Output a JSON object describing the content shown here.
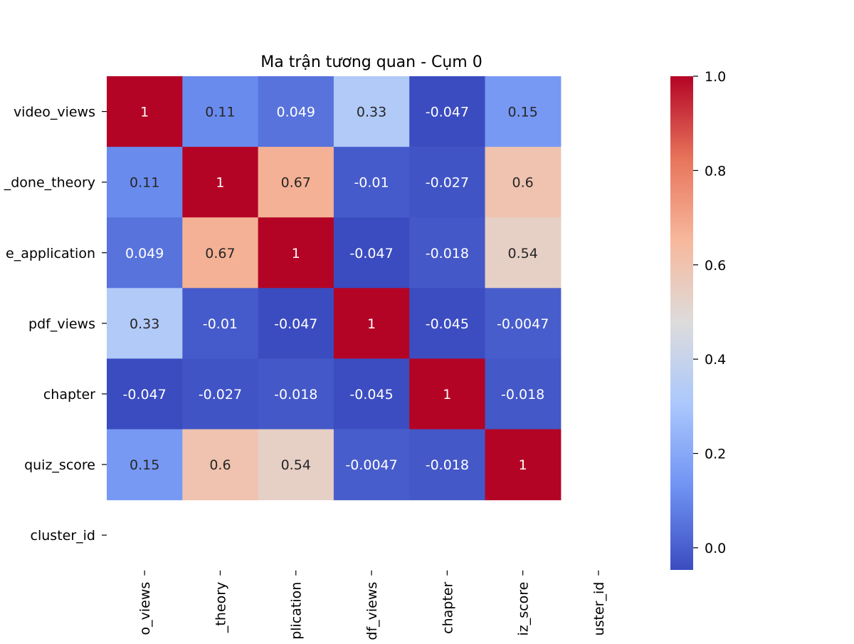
{
  "chart_data": {
    "type": "heatmap",
    "title": "Ma trận tương quan - Cụm 0",
    "row_labels": [
      "video_views",
      "_done_theory",
      "e_application",
      "pdf_views",
      "chapter",
      "quiz_score",
      "cluster_id"
    ],
    "col_labels": [
      "o_views",
      "_theory",
      "plication",
      "df_views",
      "chapter",
      "iz_score",
      "uster_id"
    ],
    "values": [
      [
        1,
        0.11,
        0.049,
        0.33,
        -0.047,
        0.15,
        null
      ],
      [
        0.11,
        1,
        0.67,
        -0.01,
        -0.027,
        0.6,
        null
      ],
      [
        0.049,
        0.67,
        1,
        -0.047,
        -0.018,
        0.54,
        null
      ],
      [
        0.33,
        -0.01,
        -0.047,
        1,
        -0.045,
        -0.0047,
        null
      ],
      [
        -0.047,
        -0.027,
        -0.018,
        -0.045,
        1,
        -0.018,
        null
      ],
      [
        0.15,
        0.6,
        0.54,
        -0.0047,
        -0.018,
        1,
        null
      ],
      [
        null,
        null,
        null,
        null,
        null,
        null,
        null
      ]
    ],
    "value_labels": [
      [
        "1",
        "0.11",
        "0.049",
        "0.33",
        "-0.047",
        "0.15",
        ""
      ],
      [
        "0.11",
        "1",
        "0.67",
        "-0.01",
        "-0.027",
        "0.6",
        ""
      ],
      [
        "0.049",
        "0.67",
        "1",
        "-0.047",
        "-0.018",
        "0.54",
        ""
      ],
      [
        "0.33",
        "-0.01",
        "-0.047",
        "1",
        "-0.045",
        "-0.0047",
        ""
      ],
      [
        "-0.047",
        "-0.027",
        "-0.018",
        "-0.045",
        "1",
        "-0.018",
        ""
      ],
      [
        "0.15",
        "0.6",
        "0.54",
        "-0.0047",
        "-0.018",
        "1",
        ""
      ],
      [
        "",
        "",
        "",
        "",
        "",
        "",
        ""
      ]
    ],
    "colormap": "coolwarm",
    "colormap_stops": [
      "#3b4cc0",
      "#6f92f3",
      "#aac7fd",
      "#dddcdc",
      "#f7b89c",
      "#e7745b",
      "#b40426"
    ],
    "vmin": -0.047,
    "vmax": 1.0,
    "colorbar_ticks": [
      0.0,
      0.2,
      0.4,
      0.6,
      0.8,
      1.0
    ],
    "colorbar_tick_labels": [
      "0.0",
      "0.2",
      "0.4",
      "0.6",
      "0.8",
      "1.0"
    ],
    "grid": false,
    "legend": "colorbar-right"
  }
}
